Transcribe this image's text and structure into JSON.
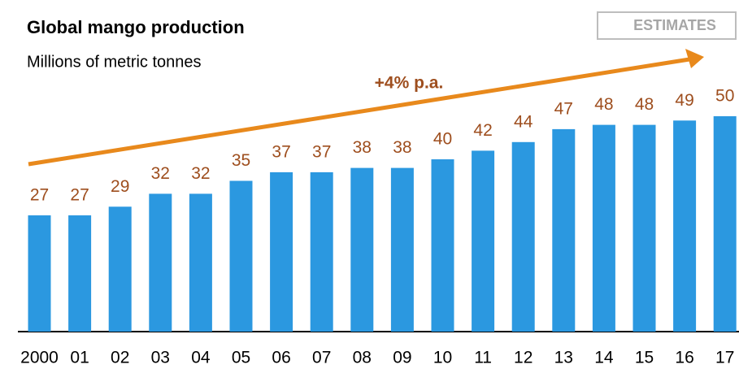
{
  "chart_data": {
    "type": "bar",
    "title": "Global mango production",
    "subtitle": "Millions of metric tonnes",
    "badge": "ESTIMATES",
    "annotation": "+4% p.a.",
    "categories": [
      "2000",
      "01",
      "02",
      "03",
      "04",
      "05",
      "06",
      "07",
      "08",
      "09",
      "10",
      "11",
      "12",
      "13",
      "14",
      "15",
      "16",
      "17"
    ],
    "values": [
      27,
      27,
      29,
      32,
      32,
      35,
      37,
      37,
      38,
      38,
      40,
      42,
      44,
      47,
      48,
      48,
      49,
      50
    ],
    "color": "#2b98e0",
    "label_color": "#9e4e1e",
    "arrow_color": "#e8891c",
    "ylim": [
      0,
      60
    ]
  }
}
